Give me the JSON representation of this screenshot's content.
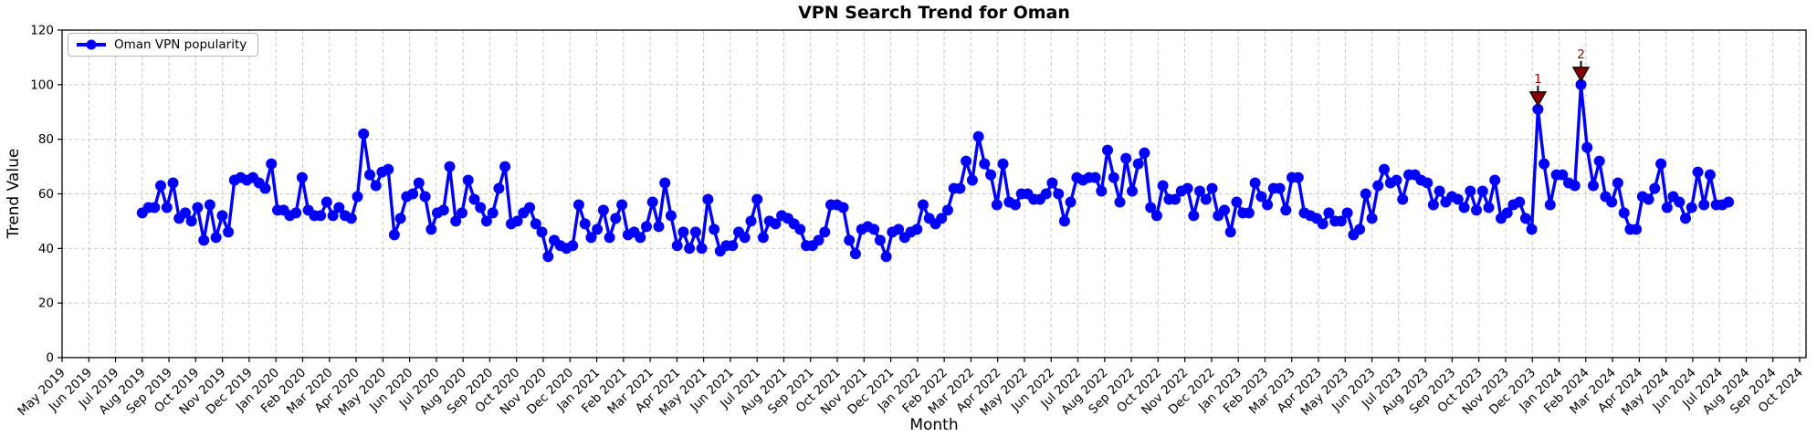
{
  "title": "VPN Search Trend for Oman",
  "legend": {
    "label": "Oman VPN popularity"
  },
  "axes": {
    "x_label": "Month",
    "y_label": "Trend Value"
  },
  "colors": {
    "line": "#0000ff",
    "annotation": "#8b0000",
    "grid": "#c8c8c8",
    "axis": "#000000",
    "background": "#ffffff"
  },
  "chart_data": {
    "type": "line",
    "title": "VPN Search Trend for Oman",
    "xlabel": "Month",
    "ylabel": "Trend Value",
    "ylim": [
      0,
      120
    ],
    "yticks": [
      0,
      20,
      40,
      60,
      80,
      100,
      120
    ],
    "grid": true,
    "legend_position": "upper left",
    "x_tick_labels": [
      "May 2019",
      "Jun 2019",
      "Jul 2019",
      "Aug 2019",
      "Sep 2019",
      "Oct 2019",
      "Nov 2019",
      "Dec 2019",
      "Jan 2020",
      "Feb 2020",
      "Mar 2020",
      "Apr 2020",
      "May 2020",
      "Jun 2020",
      "Jul 2020",
      "Aug 2020",
      "Sep 2020",
      "Oct 2020",
      "Nov 2020",
      "Dec 2020",
      "Jan 2021",
      "Feb 2021",
      "Mar 2021",
      "Apr 2021",
      "May 2021",
      "Jun 2021",
      "Jul 2021",
      "Aug 2021",
      "Sep 2021",
      "Oct 2021",
      "Nov 2021",
      "Dec 2021",
      "Jan 2022",
      "Feb 2022",
      "Mar 2022",
      "Apr 2022",
      "May 2022",
      "Jun 2022",
      "Jul 2022",
      "Aug 2022",
      "Sep 2022",
      "Oct 2022",
      "Nov 2022",
      "Dec 2022",
      "Jan 2023",
      "Feb 2023",
      "Mar 2023",
      "Apr 2023",
      "May 2023",
      "Jun 2023",
      "Jul 2023",
      "Aug 2023",
      "Sep 2023",
      "Oct 2023",
      "Nov 2023",
      "Dec 2023",
      "Jan 2024",
      "Feb 2024",
      "Mar 2024",
      "Apr 2024",
      "May 2024",
      "Jun 2024",
      "Jul 2024",
      "Aug 2024",
      "Sep 2024",
      "Oct 2024"
    ],
    "series": [
      {
        "name": "Oman VPN popularity",
        "color": "#0000ff",
        "cadence": "weekly",
        "x_start_tick_index": 3.0,
        "x_step_ticks": 0.23,
        "values": [
          53,
          55,
          55,
          63,
          55,
          64,
          51,
          53,
          50,
          55,
          43,
          56,
          44,
          52,
          46,
          65,
          66,
          65,
          66,
          64,
          62,
          71,
          54,
          54,
          52,
          53,
          66,
          54,
          52,
          52,
          57,
          52,
          55,
          52,
          51,
          59,
          82,
          67,
          63,
          68,
          69,
          45,
          51,
          59,
          60,
          64,
          59,
          47,
          53,
          54,
          70,
          50,
          53,
          65,
          58,
          55,
          50,
          53,
          62,
          70,
          49,
          50,
          53,
          55,
          49,
          46,
          37,
          43,
          41,
          40,
          41,
          56,
          49,
          44,
          47,
          54,
          44,
          51,
          56,
          45,
          46,
          44,
          48,
          57,
          48,
          64,
          52,
          41,
          46,
          40,
          46,
          40,
          58,
          47,
          39,
          41,
          41,
          46,
          44,
          50,
          58,
          44,
          50,
          49,
          52,
          51,
          49,
          47,
          41,
          41,
          43,
          46,
          56,
          56,
          55,
          43,
          38,
          47,
          48,
          47,
          43,
          37,
          46,
          47,
          44,
          46,
          47,
          56,
          51,
          49,
          51,
          54,
          62,
          62,
          72,
          65,
          81,
          71,
          67,
          56,
          71,
          57,
          56,
          60,
          60,
          58,
          58,
          60,
          64,
          60,
          50,
          57,
          66,
          65,
          66,
          66,
          61,
          76,
          66,
          57,
          73,
          61,
          71,
          75,
          55,
          52,
          63,
          58,
          58,
          61,
          62,
          52,
          61,
          58,
          62,
          52,
          54,
          46,
          57,
          53,
          53,
          64,
          59,
          56,
          62,
          62,
          54,
          66,
          66,
          53,
          52,
          51,
          49,
          53,
          50,
          50,
          53,
          45,
          47,
          60,
          51,
          63,
          69,
          64,
          65,
          58,
          67,
          67,
          65,
          64,
          56,
          61,
          57,
          59,
          58,
          55,
          61,
          54,
          61,
          55,
          65,
          51,
          53,
          56,
          57,
          51,
          47,
          91,
          71,
          56,
          67,
          67,
          64,
          63,
          100,
          77,
          63,
          72,
          59,
          57,
          64,
          53,
          47,
          47,
          59,
          58,
          62,
          71,
          55,
          59,
          57,
          51,
          55,
          68,
          56,
          67,
          56,
          56,
          57
        ]
      }
    ],
    "annotations": [
      {
        "label": "1",
        "point_index": 227,
        "value": 91,
        "color": "#8b0000"
      },
      {
        "label": "2",
        "point_index": 234,
        "value": 100,
        "color": "#8b0000"
      }
    ]
  }
}
